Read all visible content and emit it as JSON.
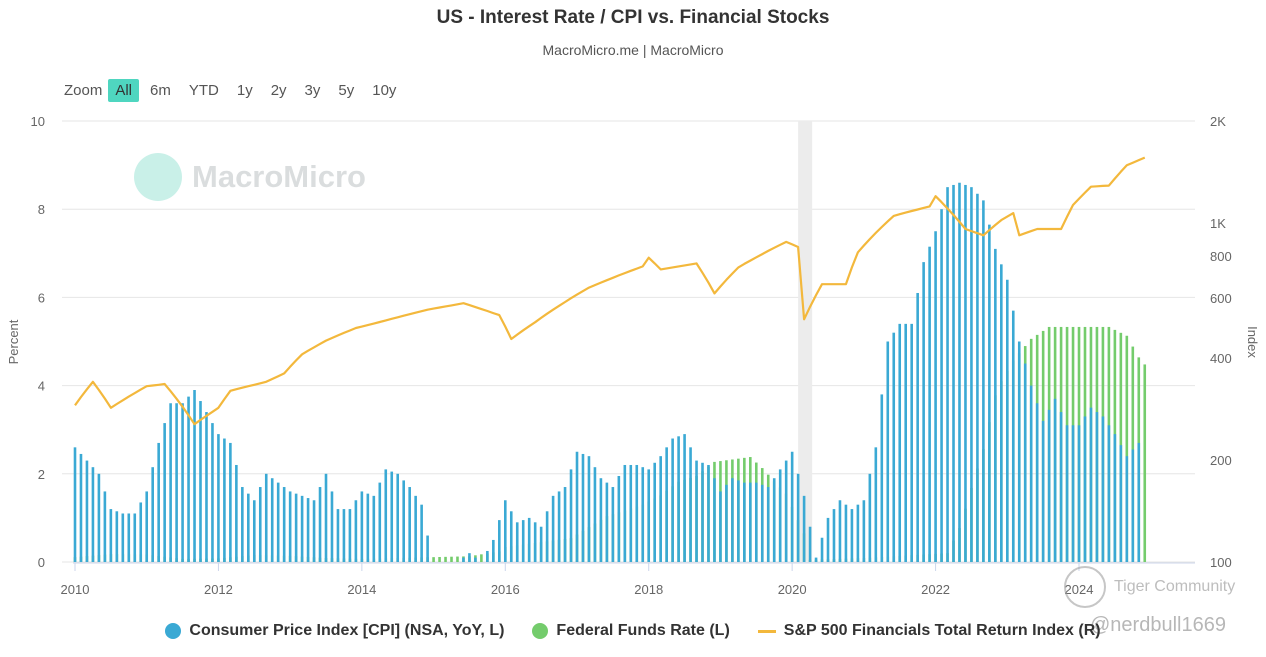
{
  "header": {
    "title": "US - Interest Rate / CPI vs. Financial Stocks",
    "subtitle": "MacroMicro.me | MacroMicro"
  },
  "zoom": {
    "label": "Zoom",
    "buttons": [
      "All",
      "6m",
      "YTD",
      "1y",
      "2y",
      "3y",
      "5y",
      "10y"
    ],
    "active": "All"
  },
  "watermark": {
    "text": "MacroMicro"
  },
  "overlay": {
    "community": "Tiger Community",
    "handle": "@nerdbull1669"
  },
  "colors": {
    "cpi": "#3aa9d4",
    "ffr": "#74cc6c",
    "spx": "#f3b83c",
    "recession": "#ececec",
    "grid": "#e6e6e6"
  },
  "chart_data": {
    "type": "bar+line",
    "title": "US - Interest Rate / CPI vs. Financial Stocks",
    "left_axis": {
      "label": "Percent",
      "range": [
        0,
        10
      ],
      "ticks": [
        0,
        2,
        4,
        6,
        8,
        10
      ]
    },
    "right_axis": {
      "label": "Index",
      "scale": "log",
      "range": [
        100,
        2000
      ],
      "ticks": [
        100,
        200,
        400,
        600,
        800,
        1000,
        2000
      ],
      "tick_labels": [
        "100",
        "200",
        "400",
        "600",
        "800",
        "1K",
        "2K"
      ]
    },
    "x_axis": {
      "range": [
        "2010-01",
        "2024-12"
      ],
      "ticks": [
        "2010",
        "2012",
        "2014",
        "2016",
        "2018",
        "2020",
        "2022",
        "2024"
      ]
    },
    "recession": [
      "2020-02",
      "2020-04"
    ],
    "legend_position": "bottom-center",
    "series": [
      {
        "name": "Consumer Price Index [CPI] (NSA, YoY, L)",
        "kind": "bar",
        "axis": "left",
        "color": "#3aa9d4",
        "points": [
          [
            "2010-01",
            2.6
          ],
          [
            "2010-03",
            2.3
          ],
          [
            "2010-05",
            2.0
          ],
          [
            "2010-07",
            1.2
          ],
          [
            "2010-09",
            1.1
          ],
          [
            "2010-11",
            1.1
          ],
          [
            "2011-01",
            1.6
          ],
          [
            "2011-03",
            2.7
          ],
          [
            "2011-05",
            3.6
          ],
          [
            "2011-07",
            3.6
          ],
          [
            "2011-09",
            3.9
          ],
          [
            "2011-11",
            3.4
          ],
          [
            "2012-01",
            2.9
          ],
          [
            "2012-03",
            2.7
          ],
          [
            "2012-05",
            1.7
          ],
          [
            "2012-07",
            1.4
          ],
          [
            "2012-09",
            2.0
          ],
          [
            "2012-11",
            1.8
          ],
          [
            "2013-01",
            1.6
          ],
          [
            "2013-03",
            1.5
          ],
          [
            "2013-05",
            1.4
          ],
          [
            "2013-07",
            2.0
          ],
          [
            "2013-09",
            1.2
          ],
          [
            "2013-11",
            1.2
          ],
          [
            "2014-01",
            1.6
          ],
          [
            "2014-03",
            1.5
          ],
          [
            "2014-05",
            2.1
          ],
          [
            "2014-07",
            2.0
          ],
          [
            "2014-09",
            1.7
          ],
          [
            "2014-11",
            1.3
          ],
          [
            "2015-01",
            -0.1
          ],
          [
            "2015-03",
            -0.1
          ],
          [
            "2015-05",
            0.0
          ],
          [
            "2015-07",
            0.2
          ],
          [
            "2015-09",
            0.0
          ],
          [
            "2015-11",
            0.5
          ],
          [
            "2016-01",
            1.4
          ],
          [
            "2016-03",
            0.9
          ],
          [
            "2016-05",
            1.0
          ],
          [
            "2016-07",
            0.8
          ],
          [
            "2016-09",
            1.5
          ],
          [
            "2016-11",
            1.7
          ],
          [
            "2017-01",
            2.5
          ],
          [
            "2017-03",
            2.4
          ],
          [
            "2017-05",
            1.9
          ],
          [
            "2017-07",
            1.7
          ],
          [
            "2017-09",
            2.2
          ],
          [
            "2017-11",
            2.2
          ],
          [
            "2018-01",
            2.1
          ],
          [
            "2018-03",
            2.4
          ],
          [
            "2018-05",
            2.8
          ],
          [
            "2018-07",
            2.9
          ],
          [
            "2018-09",
            2.3
          ],
          [
            "2018-11",
            2.2
          ],
          [
            "2019-01",
            1.6
          ],
          [
            "2019-03",
            1.9
          ],
          [
            "2019-05",
            1.8
          ],
          [
            "2019-07",
            1.8
          ],
          [
            "2019-09",
            1.7
          ],
          [
            "2019-11",
            2.1
          ],
          [
            "2020-01",
            2.5
          ],
          [
            "2020-03",
            1.5
          ],
          [
            "2020-05",
            0.1
          ],
          [
            "2020-07",
            1.0
          ],
          [
            "2020-09",
            1.4
          ],
          [
            "2020-11",
            1.2
          ],
          [
            "2021-01",
            1.4
          ],
          [
            "2021-03",
            2.6
          ],
          [
            "2021-05",
            5.0
          ],
          [
            "2021-07",
            5.4
          ],
          [
            "2021-09",
            5.4
          ],
          [
            "2021-11",
            6.8
          ],
          [
            "2022-01",
            7.5
          ],
          [
            "2022-03",
            8.5
          ],
          [
            "2022-05",
            8.6
          ],
          [
            "2022-07",
            8.5
          ],
          [
            "2022-09",
            8.2
          ],
          [
            "2022-11",
            7.1
          ],
          [
            "2023-01",
            6.4
          ],
          [
            "2023-03",
            5.0
          ],
          [
            "2023-05",
            4.0
          ],
          [
            "2023-07",
            3.2
          ],
          [
            "2023-09",
            3.7
          ],
          [
            "2023-11",
            3.1
          ],
          [
            "2024-01",
            3.1
          ],
          [
            "2024-03",
            3.5
          ],
          [
            "2024-05",
            3.3
          ],
          [
            "2024-07",
            2.9
          ],
          [
            "2024-09",
            2.4
          ],
          [
            "2024-11",
            2.7
          ]
        ]
      },
      {
        "name": "Federal Funds Rate (L)",
        "kind": "bar",
        "axis": "left",
        "color": "#74cc6c",
        "points": [
          [
            "2010-01",
            0.11
          ],
          [
            "2010-07",
            0.18
          ],
          [
            "2011-01",
            0.17
          ],
          [
            "2011-07",
            0.07
          ],
          [
            "2012-01",
            0.08
          ],
          [
            "2012-07",
            0.16
          ],
          [
            "2013-01",
            0.14
          ],
          [
            "2013-07",
            0.09
          ],
          [
            "2014-01",
            0.07
          ],
          [
            "2014-07",
            0.09
          ],
          [
            "2015-01",
            0.11
          ],
          [
            "2015-07",
            0.13
          ],
          [
            "2015-12",
            0.24
          ],
          [
            "2016-01",
            0.34
          ],
          [
            "2016-12",
            0.54
          ],
          [
            "2017-03",
            0.79
          ],
          [
            "2017-06",
            1.04
          ],
          [
            "2017-12",
            1.3
          ],
          [
            "2018-03",
            1.51
          ],
          [
            "2018-06",
            1.82
          ],
          [
            "2018-09",
            1.95
          ],
          [
            "2018-12",
            2.27
          ],
          [
            "2019-06",
            2.38
          ],
          [
            "2019-08",
            2.13
          ],
          [
            "2019-10",
            1.83
          ],
          [
            "2019-12",
            1.55
          ],
          [
            "2020-03",
            0.65
          ],
          [
            "2020-04",
            0.05
          ],
          [
            "2021-01",
            0.09
          ],
          [
            "2022-03",
            0.2
          ],
          [
            "2022-05",
            0.77
          ],
          [
            "2022-06",
            1.21
          ],
          [
            "2022-07",
            1.68
          ],
          [
            "2022-09",
            2.56
          ],
          [
            "2022-11",
            3.78
          ],
          [
            "2022-12",
            4.1
          ],
          [
            "2023-02",
            4.57
          ],
          [
            "2023-05",
            5.06
          ],
          [
            "2023-08",
            5.33
          ],
          [
            "2024-06",
            5.33
          ],
          [
            "2024-09",
            5.13
          ],
          [
            "2024-11",
            4.64
          ],
          [
            "2024-12",
            4.48
          ]
        ]
      },
      {
        "name": "S&P 500 Financials Total Return Index (R)",
        "kind": "line",
        "axis": "right",
        "color": "#f3b83c",
        "points": [
          [
            "2010-01",
            290
          ],
          [
            "2010-04",
            340
          ],
          [
            "2010-07",
            285
          ],
          [
            "2011-01",
            330
          ],
          [
            "2011-04",
            335
          ],
          [
            "2011-09",
            255
          ],
          [
            "2012-01",
            285
          ],
          [
            "2012-03",
            320
          ],
          [
            "2012-09",
            340
          ],
          [
            "2012-12",
            360
          ],
          [
            "2013-03",
            410
          ],
          [
            "2013-07",
            450
          ],
          [
            "2013-12",
            490
          ],
          [
            "2014-03",
            505
          ],
          [
            "2014-12",
            555
          ],
          [
            "2015-06",
            580
          ],
          [
            "2015-12",
            535
          ],
          [
            "2016-02",
            455
          ],
          [
            "2016-06",
            510
          ],
          [
            "2016-12",
            600
          ],
          [
            "2017-03",
            645
          ],
          [
            "2017-12",
            745
          ],
          [
            "2018-01",
            790
          ],
          [
            "2018-03",
            730
          ],
          [
            "2018-09",
            760
          ],
          [
            "2018-12",
            620
          ],
          [
            "2019-04",
            740
          ],
          [
            "2019-12",
            880
          ],
          [
            "2020-02",
            850
          ],
          [
            "2020-03",
            520
          ],
          [
            "2020-06",
            660
          ],
          [
            "2020-10",
            660
          ],
          [
            "2020-12",
            820
          ],
          [
            "2021-06",
            1050
          ],
          [
            "2021-12",
            1120
          ],
          [
            "2022-01",
            1200
          ],
          [
            "2022-06",
            960
          ],
          [
            "2022-09",
            920
          ],
          [
            "2022-12",
            1020
          ],
          [
            "2023-02",
            1070
          ],
          [
            "2023-03",
            920
          ],
          [
            "2023-06",
            960
          ],
          [
            "2023-10",
            960
          ],
          [
            "2023-12",
            1130
          ],
          [
            "2024-03",
            1280
          ],
          [
            "2024-06",
            1290
          ],
          [
            "2024-09",
            1480
          ],
          [
            "2024-12",
            1560
          ]
        ]
      }
    ]
  }
}
